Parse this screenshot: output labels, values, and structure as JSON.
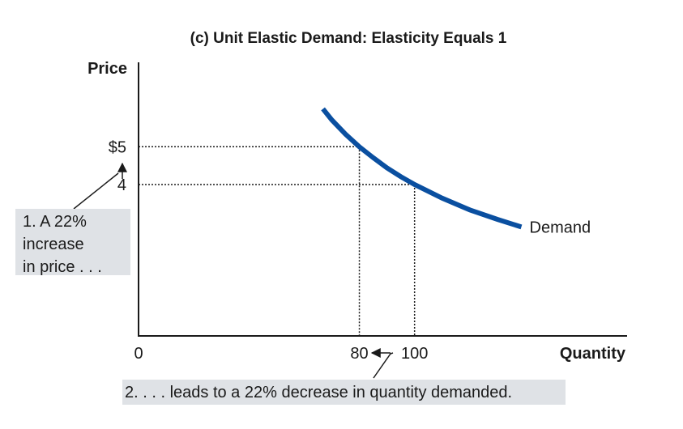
{
  "chart_data": {
    "type": "line",
    "title": "(c) Unit Elastic Demand: Elasticity Equals 1",
    "xlabel": "Quantity",
    "ylabel": "Price",
    "x_ticks": [
      {
        "value": 0,
        "label": "0"
      },
      {
        "value": 80,
        "label": "80"
      },
      {
        "value": 100,
        "label": "100"
      }
    ],
    "y_ticks": [
      {
        "value": 5,
        "label": "$5"
      },
      {
        "value": 4,
        "label": "4"
      }
    ],
    "series": [
      {
        "name": "Demand",
        "color": "#0a4fa0",
        "x": [
          66.8,
          70,
          75,
          80,
          85,
          90,
          95,
          100,
          110,
          120,
          130,
          138.7
        ],
        "y": [
          6.0,
          5.71,
          5.33,
          5.0,
          4.71,
          4.44,
          4.21,
          4.0,
          3.64,
          3.33,
          3.08,
          2.88
        ]
      }
    ],
    "reference_points": [
      {
        "x": 80,
        "y": 5
      },
      {
        "x": 100,
        "y": 4
      }
    ],
    "xlim": [
      0,
      177
    ],
    "ylim": [
      0,
      7.23
    ],
    "grid": false,
    "legend": "none"
  },
  "annotations": {
    "price_note": [
      "1. A 22%",
      "increase",
      "in price . . ."
    ],
    "quantity_note": "2. . . . leads to a 22% decrease in quantity demanded."
  }
}
